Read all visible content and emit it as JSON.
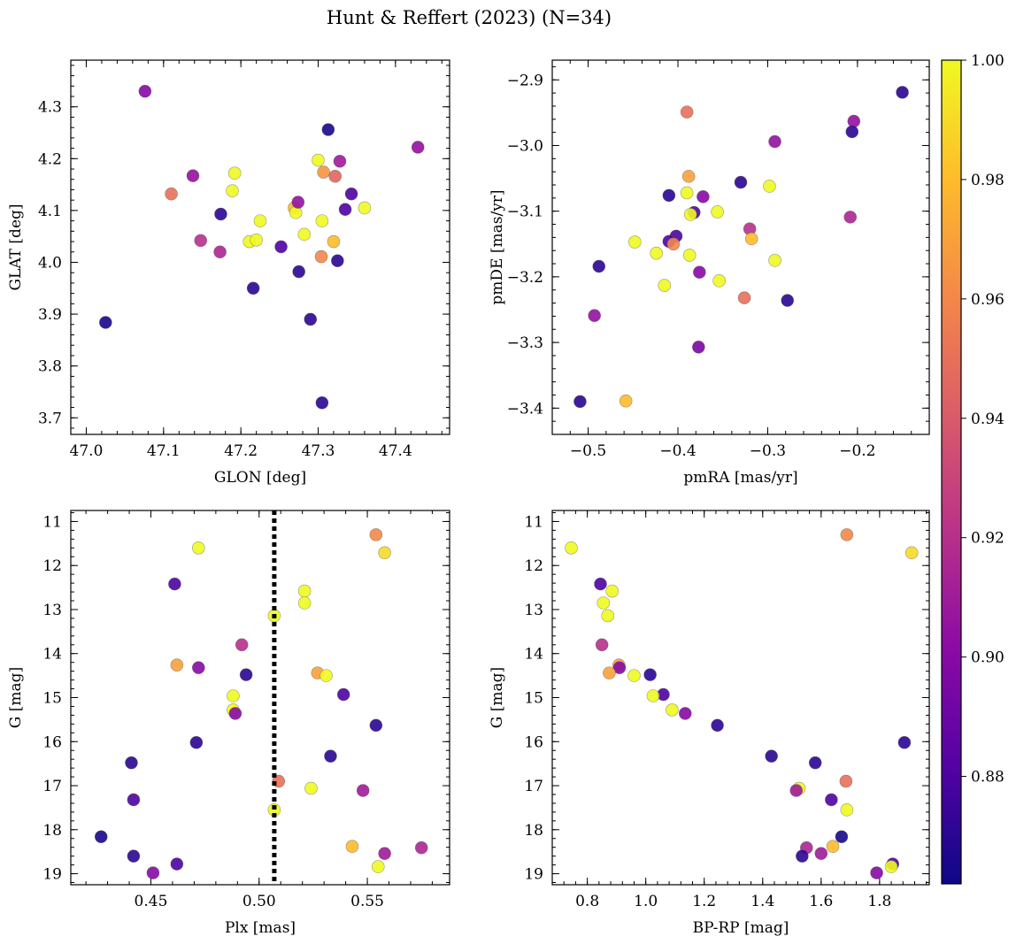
{
  "title": "Hunt & Reffert (2023) (N=34)",
  "colorbar": {
    "vmin": 0.862,
    "vmax": 1.0,
    "ticks": [
      0.88,
      0.9,
      0.92,
      0.94,
      0.96,
      0.98,
      1.0
    ],
    "tick_labels": [
      "0.88",
      "0.90",
      "0.92",
      "0.94",
      "0.96",
      "0.98",
      "1.00"
    ],
    "colormap": "plasma"
  },
  "chart_data": [
    {
      "type": "scatter",
      "xlabel": "GLON [deg]",
      "ylabel": "GLAT [deg]",
      "xlim": [
        46.98,
        47.47
      ],
      "ylim": [
        3.668,
        4.39
      ],
      "xticks": [
        47.0,
        47.1,
        47.2,
        47.3,
        47.4
      ],
      "xtick_labels": [
        "47.0",
        "47.1",
        "47.2",
        "47.3",
        "47.4"
      ],
      "yticks": [
        3.7,
        3.8,
        3.9,
        4.0,
        4.1,
        4.2,
        4.3
      ],
      "ytick_labels": [
        "3.7",
        "3.8",
        "3.9",
        "4.0",
        "4.1",
        "4.2",
        "4.3"
      ],
      "invert_y": false,
      "vline": null,
      "points": [
        {
          "x": 47.076,
          "y": 4.33,
          "c": 0.9
        },
        {
          "x": 47.11,
          "y": 4.132,
          "c": 0.95
        },
        {
          "x": 47.138,
          "y": 4.167,
          "c": 0.905
        },
        {
          "x": 47.148,
          "y": 4.042,
          "c": 0.92
        },
        {
          "x": 47.173,
          "y": 4.02,
          "c": 0.915
        },
        {
          "x": 47.174,
          "y": 4.093,
          "c": 0.87
        },
        {
          "x": 47.189,
          "y": 4.138,
          "c": 1.0
        },
        {
          "x": 47.192,
          "y": 4.172,
          "c": 1.0
        },
        {
          "x": 47.211,
          "y": 4.04,
          "c": 1.0
        },
        {
          "x": 47.216,
          "y": 3.95,
          "c": 0.87
        },
        {
          "x": 47.22,
          "y": 4.043,
          "c": 1.0
        },
        {
          "x": 47.225,
          "y": 4.08,
          "c": 1.0
        },
        {
          "x": 47.025,
          "y": 3.884,
          "c": 0.865
        },
        {
          "x": 47.252,
          "y": 4.03,
          "c": 0.88
        },
        {
          "x": 47.269,
          "y": 4.105,
          "c": 0.98
        },
        {
          "x": 47.271,
          "y": 4.096,
          "c": 1.0
        },
        {
          "x": 47.274,
          "y": 4.116,
          "c": 0.905
        },
        {
          "x": 47.275,
          "y": 3.982,
          "c": 0.87
        },
        {
          "x": 47.282,
          "y": 4.054,
          "c": 1.0
        },
        {
          "x": 47.29,
          "y": 3.89,
          "c": 0.87
        },
        {
          "x": 47.3,
          "y": 4.197,
          "c": 1.0
        },
        {
          "x": 47.304,
          "y": 4.011,
          "c": 0.96
        },
        {
          "x": 47.305,
          "y": 3.729,
          "c": 0.87
        },
        {
          "x": 47.305,
          "y": 4.08,
          "c": 1.0
        },
        {
          "x": 47.307,
          "y": 4.174,
          "c": 0.965
        },
        {
          "x": 47.313,
          "y": 4.256,
          "c": 0.865
        },
        {
          "x": 47.32,
          "y": 4.04,
          "c": 0.98
        },
        {
          "x": 47.322,
          "y": 4.166,
          "c": 0.945
        },
        {
          "x": 47.325,
          "y": 4.003,
          "c": 0.87
        },
        {
          "x": 47.328,
          "y": 4.195,
          "c": 0.91
        },
        {
          "x": 47.335,
          "y": 4.102,
          "c": 0.88
        },
        {
          "x": 47.343,
          "y": 4.132,
          "c": 0.88
        },
        {
          "x": 47.36,
          "y": 4.105,
          "c": 1.0
        },
        {
          "x": 47.429,
          "y": 4.222,
          "c": 0.905
        }
      ]
    },
    {
      "type": "scatter",
      "xlabel": "pmRA [mas/yr]",
      "ylabel": "pmDE [mas/yr]",
      "xlim": [
        -0.54,
        -0.12
      ],
      "ylim": [
        -3.44,
        -2.87
      ],
      "xticks": [
        -0.5,
        -0.4,
        -0.3,
        -0.2
      ],
      "xtick_labels": [
        "−0.5",
        "−0.4",
        "−0.3",
        "−0.2"
      ],
      "yticks": [
        -3.4,
        -3.3,
        -3.2,
        -3.1,
        -3.0,
        -2.9
      ],
      "ytick_labels": [
        "−3.4",
        "−3.3",
        "−3.2",
        "−3.1",
        "−3.0",
        "−2.9"
      ],
      "invert_y": false,
      "vline": null,
      "points": [
        {
          "x": -0.15,
          "y": -2.919,
          "c": 0.87
        },
        {
          "x": -0.39,
          "y": -2.949,
          "c": 0.95
        },
        {
          "x": -0.204,
          "y": -2.963,
          "c": 0.905
        },
        {
          "x": -0.206,
          "y": -2.979,
          "c": 0.87
        },
        {
          "x": -0.292,
          "y": -2.994,
          "c": 0.905
        },
        {
          "x": -0.388,
          "y": -3.047,
          "c": 0.97
        },
        {
          "x": -0.33,
          "y": -3.056,
          "c": 0.87
        },
        {
          "x": -0.298,
          "y": -3.062,
          "c": 1.0
        },
        {
          "x": -0.39,
          "y": -3.072,
          "c": 1.0
        },
        {
          "x": -0.41,
          "y": -3.076,
          "c": 0.87
        },
        {
          "x": -0.372,
          "y": -3.078,
          "c": 0.9
        },
        {
          "x": -0.382,
          "y": -3.102,
          "c": 0.88
        },
        {
          "x": -0.386,
          "y": -3.105,
          "c": 1.0
        },
        {
          "x": -0.356,
          "y": -3.101,
          "c": 1.0
        },
        {
          "x": -0.208,
          "y": -3.109,
          "c": 0.915
        },
        {
          "x": -0.32,
          "y": -3.127,
          "c": 0.92
        },
        {
          "x": -0.402,
          "y": -3.138,
          "c": 0.88
        },
        {
          "x": -0.318,
          "y": -3.142,
          "c": 0.98
        },
        {
          "x": -0.448,
          "y": -3.147,
          "c": 1.0
        },
        {
          "x": -0.41,
          "y": -3.146,
          "c": 0.88
        },
        {
          "x": -0.405,
          "y": -3.15,
          "c": 0.96
        },
        {
          "x": -0.424,
          "y": -3.164,
          "c": 1.0
        },
        {
          "x": -0.387,
          "y": -3.167,
          "c": 1.0
        },
        {
          "x": -0.292,
          "y": -3.175,
          "c": 1.0
        },
        {
          "x": -0.488,
          "y": -3.184,
          "c": 0.87
        },
        {
          "x": -0.376,
          "y": -3.193,
          "c": 0.9
        },
        {
          "x": -0.354,
          "y": -3.206,
          "c": 1.0
        },
        {
          "x": -0.415,
          "y": -3.213,
          "c": 1.0
        },
        {
          "x": -0.326,
          "y": -3.232,
          "c": 0.95
        },
        {
          "x": -0.278,
          "y": -3.236,
          "c": 0.87
        },
        {
          "x": -0.493,
          "y": -3.259,
          "c": 0.905
        },
        {
          "x": -0.377,
          "y": -3.307,
          "c": 0.895
        },
        {
          "x": -0.509,
          "y": -3.39,
          "c": 0.87
        },
        {
          "x": -0.458,
          "y": -3.389,
          "c": 0.98
        }
      ]
    },
    {
      "type": "scatter",
      "xlabel": "Plx [mas]",
      "ylabel": "G [mag]",
      "xlim": [
        0.413,
        0.588
      ],
      "ylim": [
        10.75,
        19.25
      ],
      "xticks": [
        0.45,
        0.5,
        0.55
      ],
      "xtick_labels": [
        "0.45",
        "0.50",
        "0.55"
      ],
      "yticks": [
        11,
        12,
        13,
        14,
        15,
        16,
        17,
        18,
        19
      ],
      "ytick_labels": [
        "11",
        "12",
        "13",
        "14",
        "15",
        "16",
        "17",
        "18",
        "19"
      ],
      "invert_y": true,
      "vline": {
        "x": 0.507,
        "style": "dotted"
      },
      "points": [
        {
          "x": 0.554,
          "y": 11.3,
          "c": 0.96
        },
        {
          "x": 0.472,
          "y": 11.6,
          "c": 1.0
        },
        {
          "x": 0.558,
          "y": 11.71,
          "c": 0.99
        },
        {
          "x": 0.461,
          "y": 12.42,
          "c": 0.88
        },
        {
          "x": 0.521,
          "y": 12.58,
          "c": 1.0
        },
        {
          "x": 0.521,
          "y": 12.85,
          "c": 1.0
        },
        {
          "x": 0.507,
          "y": 13.14,
          "c": 1.0
        },
        {
          "x": 0.492,
          "y": 13.8,
          "c": 0.92
        },
        {
          "x": 0.462,
          "y": 14.26,
          "c": 0.97
        },
        {
          "x": 0.472,
          "y": 14.32,
          "c": 0.9
        },
        {
          "x": 0.527,
          "y": 14.44,
          "c": 0.97
        },
        {
          "x": 0.531,
          "y": 14.5,
          "c": 1.0
        },
        {
          "x": 0.494,
          "y": 14.48,
          "c": 0.87
        },
        {
          "x": 0.539,
          "y": 14.93,
          "c": 0.88
        },
        {
          "x": 0.488,
          "y": 14.96,
          "c": 1.0
        },
        {
          "x": 0.488,
          "y": 15.28,
          "c": 1.0
        },
        {
          "x": 0.489,
          "y": 15.36,
          "c": 0.9
        },
        {
          "x": 0.554,
          "y": 15.63,
          "c": 0.87
        },
        {
          "x": 0.471,
          "y": 16.02,
          "c": 0.87
        },
        {
          "x": 0.533,
          "y": 16.33,
          "c": 0.87
        },
        {
          "x": 0.441,
          "y": 16.48,
          "c": 0.87
        },
        {
          "x": 0.509,
          "y": 16.9,
          "c": 0.95
        },
        {
          "x": 0.524,
          "y": 17.06,
          "c": 1.0
        },
        {
          "x": 0.548,
          "y": 17.11,
          "c": 0.91
        },
        {
          "x": 0.442,
          "y": 17.32,
          "c": 0.88
        },
        {
          "x": 0.507,
          "y": 17.55,
          "c": 1.0
        },
        {
          "x": 0.427,
          "y": 18.16,
          "c": 0.865
        },
        {
          "x": 0.543,
          "y": 18.38,
          "c": 0.98
        },
        {
          "x": 0.575,
          "y": 18.41,
          "c": 0.915
        },
        {
          "x": 0.558,
          "y": 18.54,
          "c": 0.91
        },
        {
          "x": 0.442,
          "y": 18.6,
          "c": 0.87
        },
        {
          "x": 0.462,
          "y": 18.78,
          "c": 0.88
        },
        {
          "x": 0.555,
          "y": 18.84,
          "c": 1.0
        },
        {
          "x": 0.451,
          "y": 18.98,
          "c": 0.9
        }
      ]
    },
    {
      "type": "scatter",
      "xlabel": "BP-RP [mag]",
      "ylabel": "G [mag]",
      "xlim": [
        0.68,
        1.97
      ],
      "ylim": [
        10.75,
        19.25
      ],
      "xticks": [
        0.8,
        1.0,
        1.2,
        1.4,
        1.6,
        1.8
      ],
      "xtick_labels": [
        "0.8",
        "1.0",
        "1.2",
        "1.4",
        "1.6",
        "1.8"
      ],
      "yticks": [
        11,
        12,
        13,
        14,
        15,
        16,
        17,
        18,
        19
      ],
      "ytick_labels": [
        "11",
        "12",
        "13",
        "14",
        "15",
        "16",
        "17",
        "18",
        "19"
      ],
      "invert_y": true,
      "vline": null,
      "points": [
        {
          "x": 0.745,
          "y": 11.6,
          "c": 1.0
        },
        {
          "x": 1.688,
          "y": 11.3,
          "c": 0.96
        },
        {
          "x": 1.91,
          "y": 11.71,
          "c": 0.99
        },
        {
          "x": 0.845,
          "y": 12.42,
          "c": 0.88
        },
        {
          "x": 0.885,
          "y": 12.58,
          "c": 1.0
        },
        {
          "x": 0.855,
          "y": 12.85,
          "c": 1.0
        },
        {
          "x": 0.87,
          "y": 13.14,
          "c": 1.0
        },
        {
          "x": 0.85,
          "y": 13.8,
          "c": 0.92
        },
        {
          "x": 0.908,
          "y": 14.26,
          "c": 0.97
        },
        {
          "x": 0.91,
          "y": 14.32,
          "c": 0.9
        },
        {
          "x": 0.875,
          "y": 14.44,
          "c": 0.97
        },
        {
          "x": 0.96,
          "y": 14.5,
          "c": 1.0
        },
        {
          "x": 1.015,
          "y": 14.48,
          "c": 0.87
        },
        {
          "x": 1.06,
          "y": 14.93,
          "c": 0.88
        },
        {
          "x": 1.025,
          "y": 14.96,
          "c": 1.0
        },
        {
          "x": 1.09,
          "y": 15.28,
          "c": 1.0
        },
        {
          "x": 1.135,
          "y": 15.36,
          "c": 0.9
        },
        {
          "x": 1.245,
          "y": 15.63,
          "c": 0.87
        },
        {
          "x": 1.885,
          "y": 16.02,
          "c": 0.87
        },
        {
          "x": 1.43,
          "y": 16.33,
          "c": 0.87
        },
        {
          "x": 1.58,
          "y": 16.48,
          "c": 0.87
        },
        {
          "x": 1.685,
          "y": 16.9,
          "c": 0.95
        },
        {
          "x": 1.525,
          "y": 17.06,
          "c": 1.0
        },
        {
          "x": 1.515,
          "y": 17.11,
          "c": 0.91
        },
        {
          "x": 1.635,
          "y": 17.32,
          "c": 0.88
        },
        {
          "x": 1.688,
          "y": 17.55,
          "c": 1.0
        },
        {
          "x": 1.67,
          "y": 18.16,
          "c": 0.865
        },
        {
          "x": 1.64,
          "y": 18.38,
          "c": 0.98
        },
        {
          "x": 1.55,
          "y": 18.41,
          "c": 0.915
        },
        {
          "x": 1.6,
          "y": 18.54,
          "c": 0.91
        },
        {
          "x": 1.535,
          "y": 18.6,
          "c": 0.87
        },
        {
          "x": 1.845,
          "y": 18.78,
          "c": 0.88
        },
        {
          "x": 1.84,
          "y": 18.84,
          "c": 1.0
        },
        {
          "x": 1.79,
          "y": 18.98,
          "c": 0.9
        }
      ]
    }
  ]
}
